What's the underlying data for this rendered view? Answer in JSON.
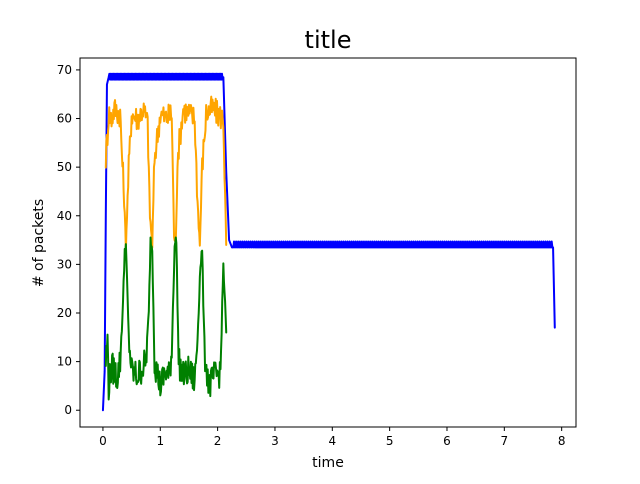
{
  "chart_data": {
    "type": "line",
    "title": "title",
    "xlabel": "time",
    "ylabel": "# of packets",
    "xlim": [
      -0.4,
      8.25
    ],
    "ylim": [
      -3.45,
      72.45
    ],
    "xticks": [
      0,
      1,
      2,
      3,
      4,
      5,
      6,
      7,
      8
    ],
    "yticks": [
      0,
      10,
      20,
      30,
      40,
      50,
      60,
      70
    ],
    "grid": false,
    "legend": null,
    "series": [
      {
        "color": "#0000ff",
        "pattern": "flat-then-halved",
        "x": [
          0,
          0.03,
          0.05,
          0.07,
          0.1,
          2.1,
          2.15,
          2.2,
          2.25,
          7.85,
          7.88
        ],
        "y": [
          0,
          8,
          40,
          67,
          68.5,
          68.5,
          49,
          35,
          33.5,
          33.5,
          17
        ]
      },
      {
        "color": "#ffa500",
        "pattern": "oscillating",
        "x": [
          0.05,
          0.08,
          0.1,
          0.15,
          0.2,
          0.3,
          0.33,
          0.36,
          0.4,
          0.45,
          0.5,
          0.6,
          0.7,
          0.78,
          0.82,
          0.86,
          0.9,
          1.0,
          1.1,
          1.2,
          1.24,
          1.27,
          1.3,
          1.4,
          1.5,
          1.6,
          1.65,
          1.69,
          1.73,
          1.8,
          1.9,
          2.0,
          2.1,
          2.15
        ],
        "y": [
          52,
          57,
          61,
          60,
          62,
          61,
          53,
          46,
          34,
          50,
          61,
          60,
          62,
          59,
          40,
          34,
          52,
          61,
          60,
          61,
          36,
          34,
          52,
          62,
          61,
          60,
          43,
          34,
          50,
          61,
          62,
          61,
          60,
          34
        ]
      },
      {
        "color": "#008000",
        "pattern": "oscillating",
        "x": [
          0.05,
          0.08,
          0.1,
          0.15,
          0.2,
          0.25,
          0.3,
          0.35,
          0.38,
          0.4,
          0.45,
          0.5,
          0.6,
          0.7,
          0.75,
          0.8,
          0.83,
          0.86,
          0.9,
          1.0,
          1.1,
          1.15,
          1.2,
          1.25,
          1.28,
          1.32,
          1.4,
          1.5,
          1.6,
          1.65,
          1.7,
          1.73,
          1.77,
          1.85,
          1.95,
          2.05,
          2.1,
          2.15
        ],
        "y": [
          10,
          15,
          5,
          9,
          8,
          7,
          10,
          22,
          33,
          34,
          15,
          8,
          7,
          9,
          10,
          20,
          35,
          33,
          10,
          5,
          8,
          7,
          12,
          34,
          35,
          10,
          7,
          8,
          6,
          15,
          30,
          33,
          12,
          5,
          7,
          8,
          30,
          16
        ]
      }
    ]
  }
}
